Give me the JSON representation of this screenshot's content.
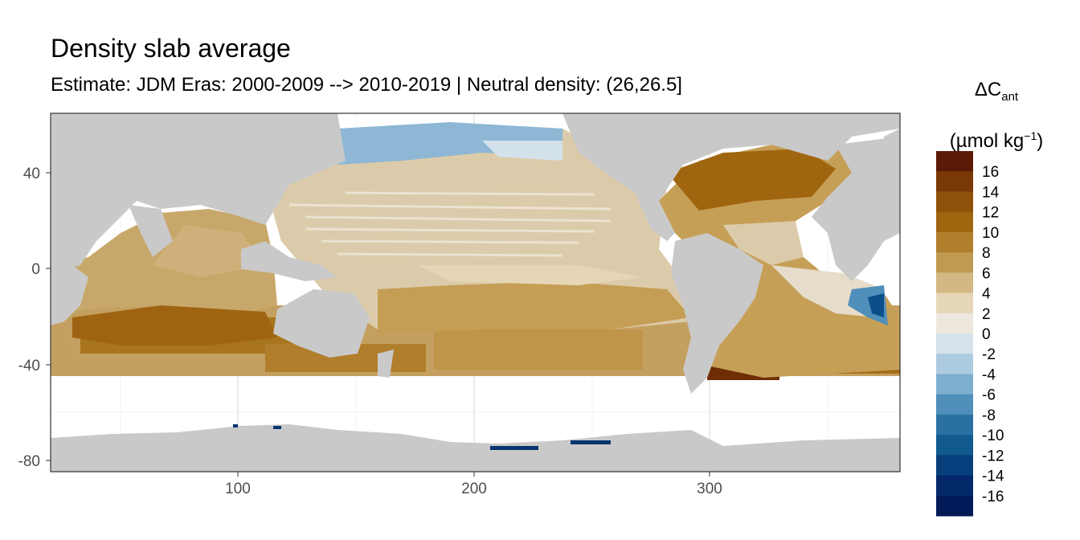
{
  "title": "Density slab average",
  "subtitle": "Estimate: JDM Eras: 2000-2009 --> 2010-2019 | Neutral density: (26,26.5]",
  "legend": {
    "title_main": "ΔC",
    "title_sub": "ant",
    "unit_open": "(µmol kg",
    "unit_sup": "−1",
    "unit_close": ")",
    "labels": [
      "16",
      "14",
      "12",
      "10",
      "8",
      "6",
      "4",
      "2",
      "0",
      "-2",
      "-4",
      "-6",
      "-8",
      "-10",
      "-12",
      "-14",
      "-16"
    ],
    "colors": [
      "#5a1a05",
      "#7a3806",
      "#8f5009",
      "#a0660f",
      "#b07f2c",
      "#c19a52",
      "#d4b884",
      "#e6d7b7",
      "#ede7de",
      "#d6e3ea",
      "#adcbdf",
      "#7fafcf",
      "#4f8fba",
      "#2a71a3",
      "#115a8f",
      "#063f7b",
      "#04296a",
      "#021a57"
    ]
  },
  "axes": {
    "x_ticks": [
      "100",
      "200",
      "300"
    ],
    "y_ticks": [
      "40",
      "0",
      "-40",
      "-80"
    ]
  },
  "colors": {
    "land": "#c9c9c9",
    "missing": "#ffffff",
    "grid": "#ebebeb",
    "panel_border": "#333333"
  }
}
